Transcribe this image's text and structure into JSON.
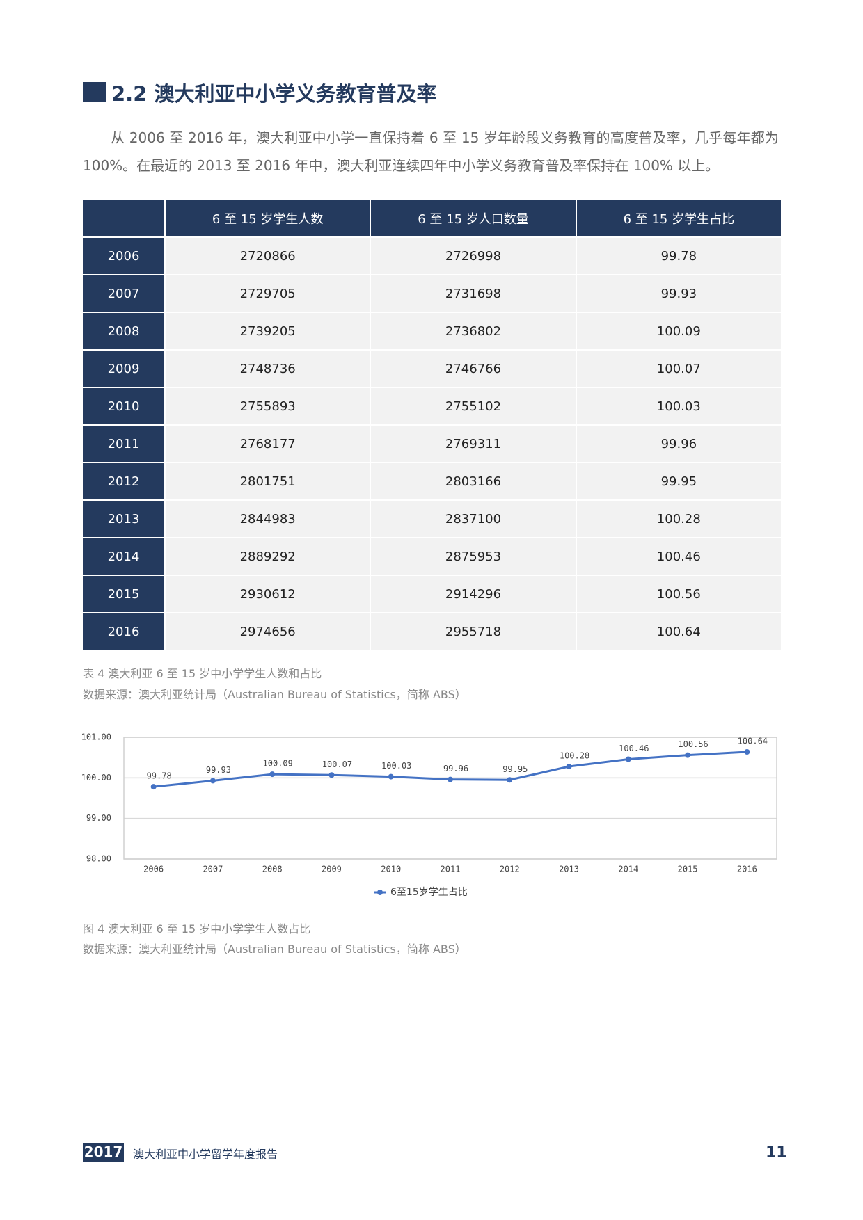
{
  "section_title": "2.2 澳大利亚中小学义务教育普及率",
  "paragraph": "从 2006 至 2016 年，澳大利亚中小学一直保持着 6 至 15 岁年龄段义务教育的高度普及率，几乎每年都为 100%。在最近的 2013 至 2016 年中，澳大利亚连续四年中小学义务教育普及率保持在 100% 以上。",
  "table": {
    "headers": [
      "6 至 15 岁学生人数",
      "6 至 15 岁人口数量",
      "6 至 15 岁学生占比"
    ],
    "rows": [
      [
        "2006",
        2720866,
        2726998,
        99.78
      ],
      [
        "2007",
        2729705,
        2731698,
        99.93
      ],
      [
        "2008",
        2739205,
        2736802,
        100.09
      ],
      [
        "2009",
        2748736,
        2746766,
        100.07
      ],
      [
        "2010",
        2755893,
        2755102,
        100.03
      ],
      [
        "2011",
        2768177,
        2769311,
        99.96
      ],
      [
        "2012",
        2801751,
        2803166,
        99.95
      ],
      [
        "2013",
        2844983,
        2837100,
        100.28
      ],
      [
        "2014",
        2889292,
        2875953,
        100.46
      ],
      [
        "2015",
        2930612,
        2914296,
        100.56
      ],
      [
        "2016",
        2974656,
        2955718,
        100.64
      ]
    ],
    "caption": "表 4 澳大利亚 6 至 15 岁中小学学生人数和占比",
    "source": "数据来源：澳大利亚统计局（Australian Bureau of Statistics，简称 ABS）"
  },
  "chart_data": {
    "type": "line",
    "categories": [
      "2006",
      "2007",
      "2008",
      "2009",
      "2010",
      "2011",
      "2012",
      "2013",
      "2014",
      "2015",
      "2016"
    ],
    "series": [
      {
        "name": "6至15岁学生占比",
        "color": "#4472c4",
        "values": [
          99.78,
          99.93,
          100.09,
          100.07,
          100.03,
          99.96,
          99.95,
          100.28,
          100.46,
          100.56,
          100.64
        ]
      }
    ],
    "ylim": [
      98,
      101
    ],
    "yticks": [
      {
        "value": 98,
        "label": "98.00"
      },
      {
        "value": 99,
        "label": "99.00"
      },
      {
        "value": 100,
        "label": "100.00"
      },
      {
        "value": 101,
        "label": "101.00"
      }
    ],
    "grid": true,
    "legend": "bottom"
  },
  "figure": {
    "caption": "图 4 澳大利亚 6 至 15 岁中小学学生人数占比",
    "source": "数据来源：澳大利亚统计局（Australian Bureau of Statistics，简称 ABS）"
  },
  "footer": {
    "year": "2017",
    "report": "澳大利亚中小学留学年度报告",
    "page": "11"
  }
}
